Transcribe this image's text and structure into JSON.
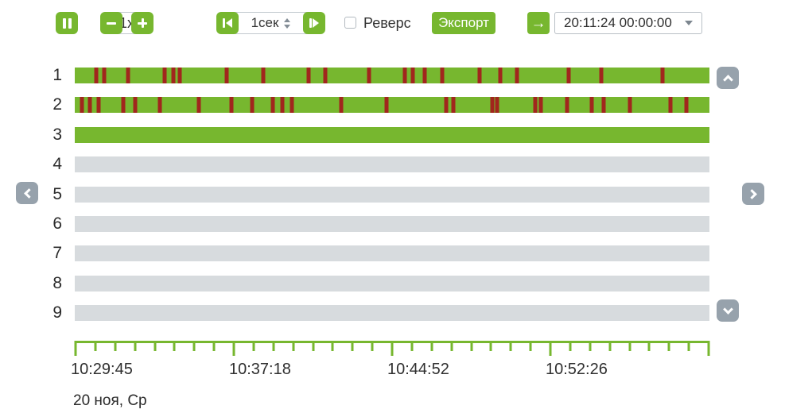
{
  "toolbar": {
    "pause_button": {
      "icon": "pause-icon"
    },
    "speed": {
      "minus_icon": "minus-icon",
      "value": "1x",
      "plus_icon": "plus-icon"
    },
    "step": {
      "back_icon": "step-back-icon",
      "value": "1сек",
      "spinner_icons": [
        "caret-up-icon",
        "caret-down-icon"
      ],
      "forward_icon": "step-forward-icon"
    },
    "reverse": {
      "label": "Реверс",
      "checked": false
    },
    "export_label": "Экспорт",
    "goto": {
      "icon": "arrow-right-icon",
      "glyph": "→"
    },
    "time_select": {
      "value": "20:11:24 00:00:00",
      "icon": "caret-down-icon"
    }
  },
  "nav": {
    "up_icon": "chevron-up-icon",
    "down_icon": "chevron-down-icon",
    "left_icon": "chevron-left-icon",
    "right_icon": "chevron-right-icon"
  },
  "timeline": {
    "channels": [
      {
        "id": "1",
        "fill": "recorded",
        "marks_pct": [
          3.4,
          4.6,
          8.4,
          14.1,
          15.5,
          16.6,
          23.9,
          29.7,
          36.8,
          39.5,
          46.4,
          52.0,
          53.3,
          55.1,
          57.9,
          63.8,
          67.1,
          69.7,
          77.8,
          82.9,
          92.6
        ]
      },
      {
        "id": "2",
        "fill": "recorded",
        "marks_pct": [
          1.1,
          2.4,
          3.8,
          7.6,
          9.5,
          13.4,
          19.5,
          24.7,
          28.0,
          31.2,
          32.7,
          34.2,
          42.0,
          49.1,
          58.5,
          59.6,
          65.8,
          66.5,
          72.5,
          73.4,
          77.6,
          81.4,
          83.3,
          87.5,
          93.8,
          96.4
        ]
      },
      {
        "id": "3",
        "fill": "recorded",
        "marks_pct": []
      },
      {
        "id": "4",
        "fill": "empty",
        "marks_pct": []
      },
      {
        "id": "5",
        "fill": "empty",
        "marks_pct": []
      },
      {
        "id": "6",
        "fill": "empty",
        "marks_pct": []
      },
      {
        "id": "7",
        "fill": "empty",
        "marks_pct": []
      },
      {
        "id": "8",
        "fill": "empty",
        "marks_pct": []
      },
      {
        "id": "9",
        "fill": "empty",
        "marks_pct": []
      }
    ],
    "ruler": {
      "tick_count": 33,
      "major_every": 8,
      "labels": [
        "10:29:45",
        "10:37:18",
        "10:44:52",
        "10:52:26"
      ]
    },
    "date_label": "20 ноя, Ср"
  },
  "colors": {
    "green": "#77b72f",
    "event_red": "#a1261d",
    "empty_gray": "#d7dbde",
    "nav_gray": "#97a2ac"
  }
}
